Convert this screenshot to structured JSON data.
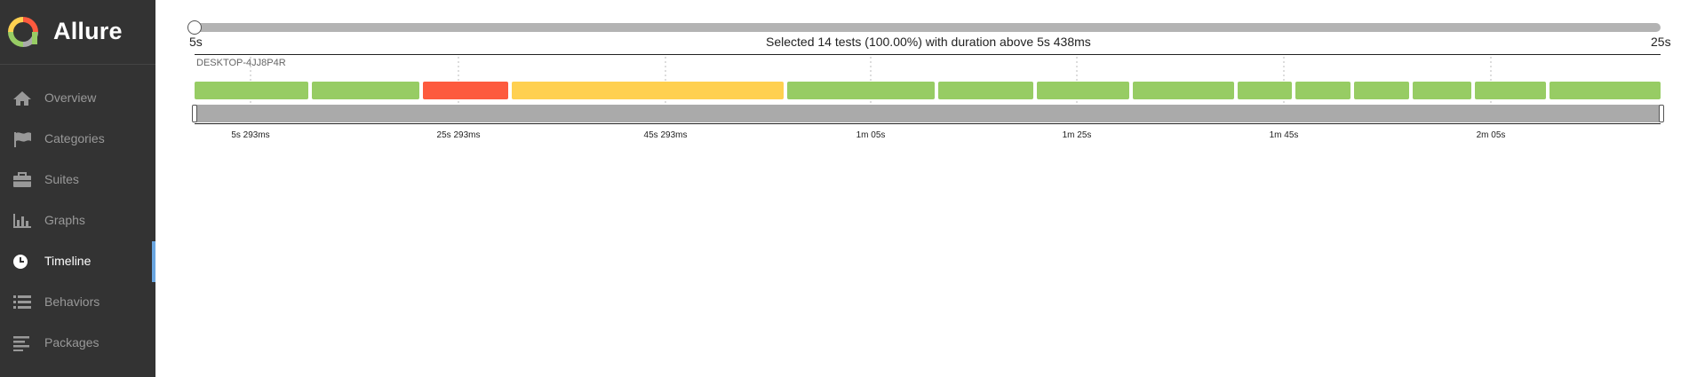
{
  "app": {
    "name": "Allure",
    "colors": {
      "sidebar_bg": "#333333",
      "active_accent": "#6aa6e0",
      "passed": "#97cc64",
      "failed": "#fd5a3e",
      "broken": "#ffd050",
      "brush": "#aaaaaa"
    }
  },
  "sidebar": {
    "items": [
      {
        "label": "Overview",
        "icon": "home-icon"
      },
      {
        "label": "Categories",
        "icon": "flag-icon"
      },
      {
        "label": "Suites",
        "icon": "briefcase-icon"
      },
      {
        "label": "Graphs",
        "icon": "bar-chart-icon"
      },
      {
        "label": "Timeline",
        "icon": "clock-icon",
        "active": true
      },
      {
        "label": "Behaviors",
        "icon": "list-icon"
      },
      {
        "label": "Packages",
        "icon": "align-left-icon"
      }
    ]
  },
  "timeline": {
    "slider_min_label": "5s",
    "slider_max_label": "25s",
    "selected_text": "Selected 14 tests (100.00%) with duration above 5s 438ms",
    "host": "DESKTOP-4JJ8P4R",
    "tick_labels": [
      "5s 293ms",
      "25s 293ms",
      "45s 293ms",
      "1m 05s",
      "1m 25s",
      "1m 45s",
      "2m 05s"
    ],
    "tests": [
      {
        "status": "passed"
      },
      {
        "status": "passed"
      },
      {
        "status": "failed"
      },
      {
        "status": "broken"
      },
      {
        "status": "passed"
      },
      {
        "status": "passed"
      },
      {
        "status": "passed"
      },
      {
        "status": "passed"
      },
      {
        "status": "passed"
      },
      {
        "status": "passed"
      },
      {
        "status": "passed"
      },
      {
        "status": "passed"
      },
      {
        "status": "passed"
      },
      {
        "status": "passed"
      }
    ]
  }
}
